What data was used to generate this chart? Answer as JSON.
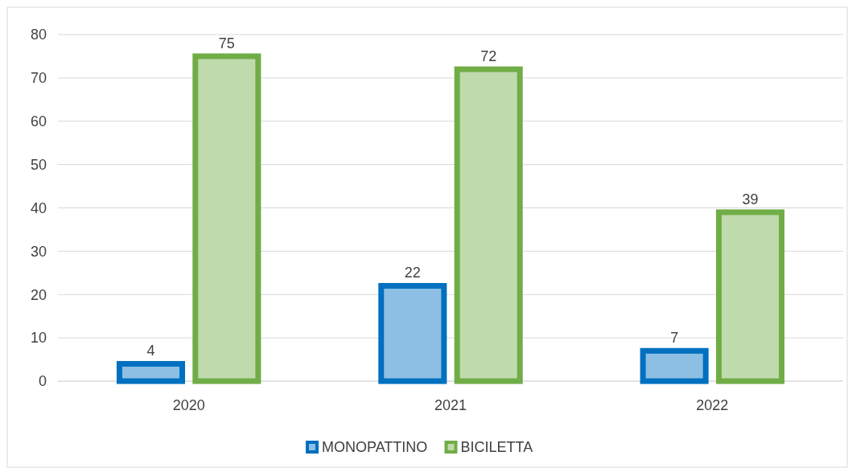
{
  "chart_data": {
    "type": "bar",
    "categories": [
      "2020",
      "2021",
      "2022"
    ],
    "series": [
      {
        "name": "MONOPATTINO",
        "color": "#0070c0",
        "values": [
          4,
          22,
          7
        ]
      },
      {
        "name": "BICILETTA",
        "color": "#70ad47",
        "values": [
          75,
          72,
          39
        ]
      }
    ],
    "ylim": [
      0,
      80
    ],
    "yticks": [
      0,
      10,
      20,
      30,
      40,
      50,
      60,
      70,
      80
    ],
    "grid": "y",
    "data_labels": true,
    "legend": "bottom"
  }
}
